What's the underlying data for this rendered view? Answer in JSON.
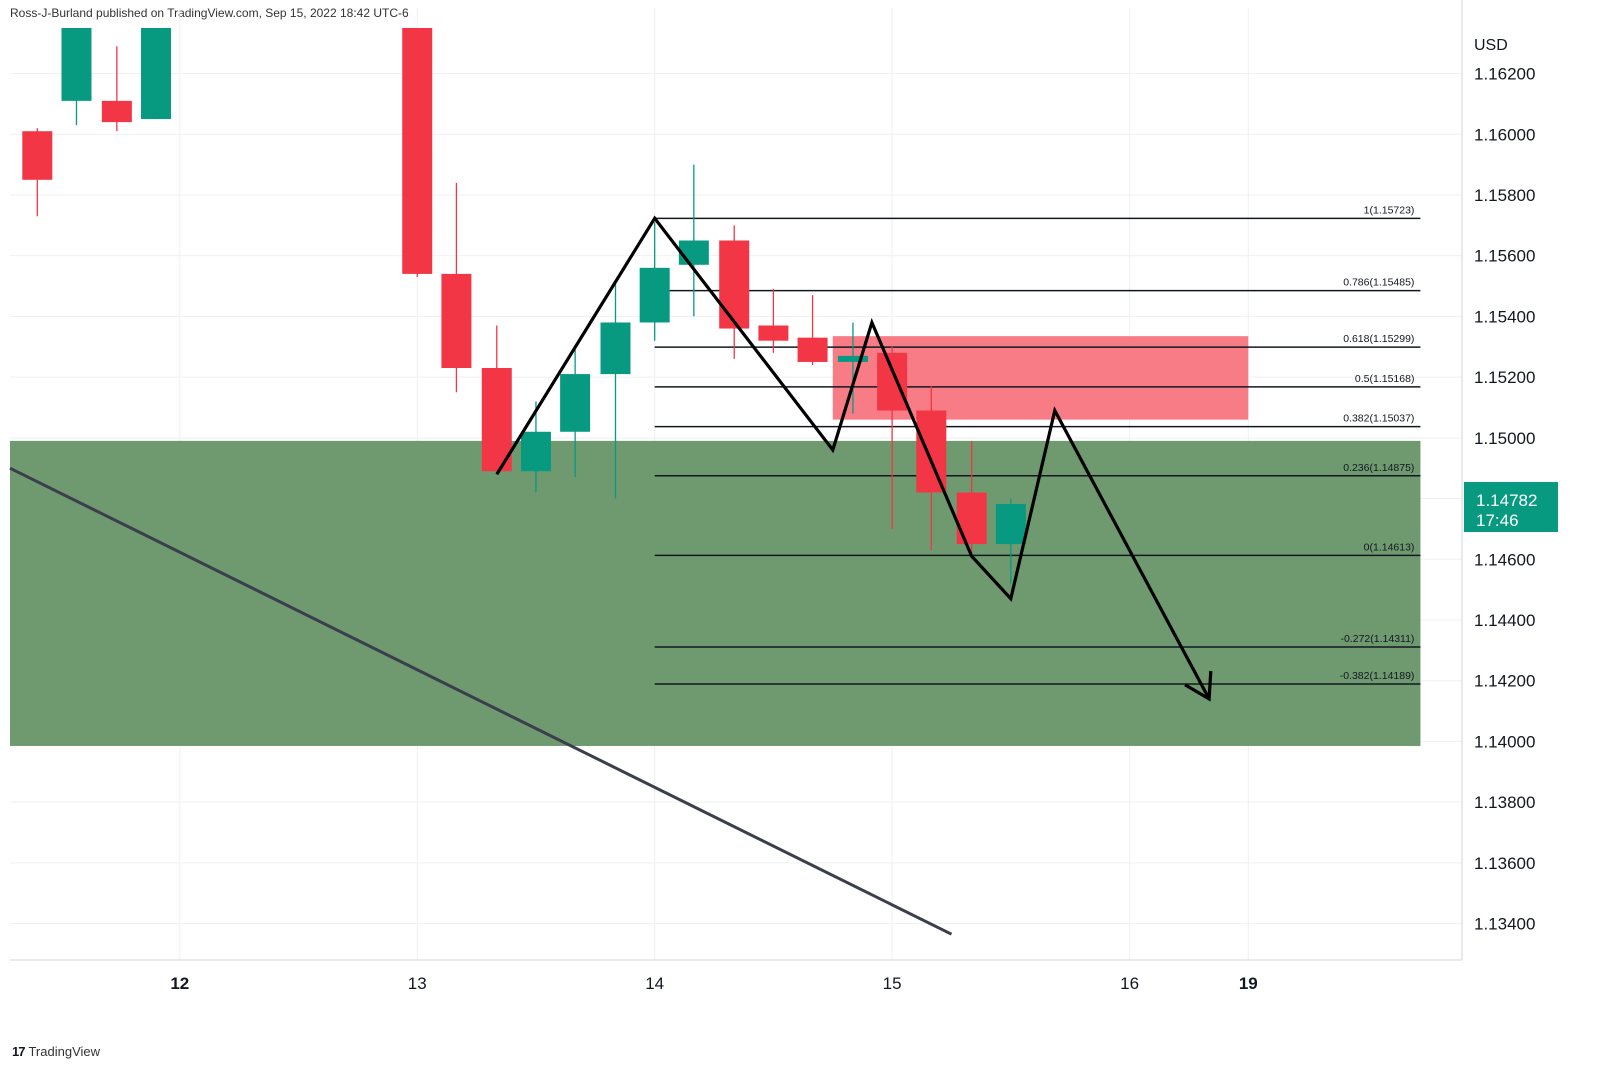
{
  "header": {
    "publisher": "Ross-J-Burland published on TradingView.com, Sep 15, 2022 18:42 UTC-6"
  },
  "footer": {
    "brand": "TradingView",
    "logo_text": "17"
  },
  "colors": {
    "bull": "#089981",
    "bear": "#f23645",
    "support_zone": "#6f9a70",
    "resistance_zone": "#f77c85",
    "fib_line": "#131722",
    "trendline": "#3a3f4b",
    "price_tag": "#089981",
    "grid": "#eef0f3"
  },
  "chart_data": {
    "type": "candlestick",
    "instrument_currency": "USD",
    "y_axis": {
      "label": "USD",
      "range": [
        1.1328,
        1.1635
      ],
      "ticks": [
        "1.16200",
        "1.16000",
        "1.15800",
        "1.15600",
        "1.15400",
        "1.15200",
        "1.15000",
        "1.14800",
        "1.14600",
        "1.14400",
        "1.14200",
        "1.14000",
        "1.13800",
        "1.13600",
        "1.13400"
      ],
      "tick_values": [
        1.162,
        1.16,
        1.158,
        1.156,
        1.154,
        1.152,
        1.15,
        1.148,
        1.146,
        1.144,
        1.142,
        1.14,
        1.138,
        1.136,
        1.134
      ]
    },
    "x_axis": {
      "labels": [
        "12",
        "13",
        "14",
        "15",
        "16",
        "19"
      ],
      "label_positions": [
        1.0,
        3.0,
        5.0,
        7.0,
        9.0,
        10.0
      ],
      "range": [
        -0.43,
        11.8
      ],
      "grid": true
    },
    "candles": [
      {
        "t": -0.2,
        "o": 1.1601,
        "h": 1.1602,
        "l": 1.1573,
        "c": 1.1585
      },
      {
        "t": 0.13,
        "o": 1.1611,
        "h": 1.1635,
        "l": 1.1603,
        "c": 1.1635
      },
      {
        "t": 0.47,
        "o": 1.1611,
        "h": 1.1629,
        "l": 1.1601,
        "c": 1.1604
      },
      {
        "t": 0.8,
        "o": 1.1605,
        "h": 1.1635,
        "l": 1.1605,
        "c": 1.1635
      },
      {
        "t": 3.0,
        "o": 1.1635,
        "h": 1.1635,
        "l": 1.1553,
        "c": 1.1554
      },
      {
        "t": 3.33,
        "o": 1.1554,
        "h": 1.1584,
        "l": 1.1515,
        "c": 1.1523
      },
      {
        "t": 3.67,
        "o": 1.1523,
        "h": 1.1537,
        "l": 1.1488,
        "c": 1.1489
      },
      {
        "t": 4.0,
        "o": 1.1489,
        "h": 1.1512,
        "l": 1.1482,
        "c": 1.1502
      },
      {
        "t": 4.33,
        "o": 1.1502,
        "h": 1.1529,
        "l": 1.1487,
        "c": 1.1521
      },
      {
        "t": 4.67,
        "o": 1.1521,
        "h": 1.1551,
        "l": 1.148,
        "c": 1.1538
      },
      {
        "t": 5.0,
        "o": 1.1538,
        "h": 1.1571,
        "l": 1.1532,
        "c": 1.1556
      },
      {
        "t": 5.33,
        "o": 1.1557,
        "h": 1.159,
        "l": 1.154,
        "c": 1.1565
      },
      {
        "t": 5.67,
        "o": 1.1565,
        "h": 1.157,
        "l": 1.1526,
        "c": 1.1536
      },
      {
        "t": 6.0,
        "o": 1.1537,
        "h": 1.1549,
        "l": 1.1528,
        "c": 1.1532
      },
      {
        "t": 6.33,
        "o": 1.1533,
        "h": 1.1547,
        "l": 1.1524,
        "c": 1.1525
      },
      {
        "t": 6.67,
        "o": 1.1525,
        "h": 1.1538,
        "l": 1.1508,
        "c": 1.1527
      },
      {
        "t": 7.0,
        "o": 1.1528,
        "h": 1.153,
        "l": 1.147,
        "c": 1.1509
      },
      {
        "t": 7.33,
        "o": 1.1509,
        "h": 1.1517,
        "l": 1.1463,
        "c": 1.1482
      },
      {
        "t": 7.67,
        "o": 1.1482,
        "h": 1.1499,
        "l": 1.1462,
        "c": 1.1465
      },
      {
        "t": 8.0,
        "o": 1.1465,
        "h": 1.148,
        "l": 1.1452,
        "c": 1.14782
      }
    ],
    "fibonacci": {
      "x_start": 5.0,
      "x_end": 11.45,
      "levels": [
        {
          "label": "1(1.15723)",
          "value": 1.15723
        },
        {
          "label": "0.786(1.15485)",
          "value": 1.15485
        },
        {
          "label": "0.618(1.15299)",
          "value": 1.15299
        },
        {
          "label": "0.5(1.15168)",
          "value": 1.15168
        },
        {
          "label": "0.382(1.15037)",
          "value": 1.15037
        },
        {
          "label": "0.236(1.14875)",
          "value": 1.14875
        },
        {
          "label": "0(1.14613)",
          "value": 1.14613
        },
        {
          "label": "-0.272(1.14311)",
          "value": 1.14311
        },
        {
          "label": "-0.382(1.14189)",
          "value": 1.14189
        }
      ]
    },
    "zones": [
      {
        "name": "support",
        "x0": -0.43,
        "x1": 11.45,
        "y0": 1.13985,
        "y1": 1.1499
      },
      {
        "name": "resistance",
        "x0": 6.5,
        "x1": 10.0,
        "y0": 1.1506,
        "y1": 1.15335
      }
    ],
    "trendline": {
      "points": [
        [
          -0.43,
          1.149
        ],
        [
          7.5,
          1.13365
        ]
      ]
    },
    "projection_path": [
      [
        3.67,
        1.1488
      ],
      [
        5.0,
        1.15723
      ],
      [
        6.5,
        1.1496
      ],
      [
        6.83,
        1.1538
      ],
      [
        7.3,
        1.1495
      ],
      [
        7.67,
        1.1461
      ],
      [
        8.0,
        1.1447
      ],
      [
        8.37,
        1.1509
      ],
      [
        9.67,
        1.1414
      ]
    ],
    "current_price": {
      "value": 1.14782,
      "label": "1.14782",
      "countdown": "17:46"
    }
  }
}
